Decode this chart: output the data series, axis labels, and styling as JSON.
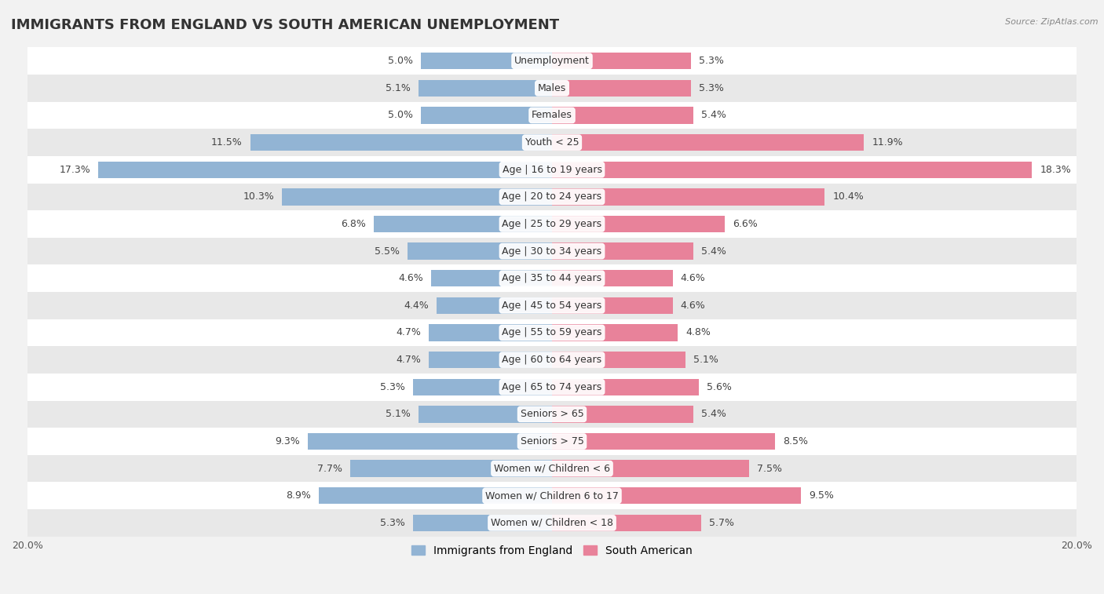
{
  "title": "IMMIGRANTS FROM ENGLAND VS SOUTH AMERICAN UNEMPLOYMENT",
  "source": "Source: ZipAtlas.com",
  "categories": [
    "Unemployment",
    "Males",
    "Females",
    "Youth < 25",
    "Age | 16 to 19 years",
    "Age | 20 to 24 years",
    "Age | 25 to 29 years",
    "Age | 30 to 34 years",
    "Age | 35 to 44 years",
    "Age | 45 to 54 years",
    "Age | 55 to 59 years",
    "Age | 60 to 64 years",
    "Age | 65 to 74 years",
    "Seniors > 65",
    "Seniors > 75",
    "Women w/ Children < 6",
    "Women w/ Children 6 to 17",
    "Women w/ Children < 18"
  ],
  "england_values": [
    5.0,
    5.1,
    5.0,
    11.5,
    17.3,
    10.3,
    6.8,
    5.5,
    4.6,
    4.4,
    4.7,
    4.7,
    5.3,
    5.1,
    9.3,
    7.7,
    8.9,
    5.3
  ],
  "southam_values": [
    5.3,
    5.3,
    5.4,
    11.9,
    18.3,
    10.4,
    6.6,
    5.4,
    4.6,
    4.6,
    4.8,
    5.1,
    5.6,
    5.4,
    8.5,
    7.5,
    9.5,
    5.7
  ],
  "england_color": "#92b4d4",
  "southam_color": "#e8829a",
  "bar_height": 0.62,
  "max_val": 20.0,
  "bg_color": "#f2f2f2",
  "row_color_odd": "#ffffff",
  "row_color_even": "#e8e8e8",
  "title_fontsize": 13,
  "label_fontsize": 9,
  "value_fontsize": 9,
  "legend_label_england": "Immigrants from England",
  "legend_label_southam": "South American"
}
